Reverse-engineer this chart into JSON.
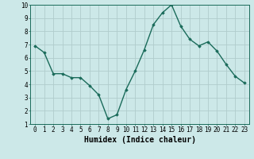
{
  "x": [
    0,
    1,
    2,
    3,
    4,
    5,
    6,
    7,
    8,
    9,
    10,
    11,
    12,
    13,
    14,
    15,
    16,
    17,
    18,
    19,
    20,
    21,
    22,
    23
  ],
  "y": [
    6.9,
    6.4,
    4.8,
    4.8,
    4.5,
    4.5,
    3.9,
    3.2,
    1.4,
    1.7,
    3.6,
    5.0,
    6.6,
    8.5,
    9.4,
    10.0,
    8.4,
    7.4,
    6.9,
    7.2,
    6.5,
    5.5,
    4.6,
    4.1
  ],
  "line_color": "#1a6b5a",
  "marker": "D",
  "markersize": 1.8,
  "linewidth": 1.0,
  "xlabel": "Humidex (Indice chaleur)",
  "xlabel_fontsize": 7,
  "xlabel_bold": true,
  "ylim": [
    1,
    10
  ],
  "xlim_min": -0.5,
  "xlim_max": 23.5,
  "yticks": [
    1,
    2,
    3,
    4,
    5,
    6,
    7,
    8,
    9,
    10
  ],
  "xticks": [
    0,
    1,
    2,
    3,
    4,
    5,
    6,
    7,
    8,
    9,
    10,
    11,
    12,
    13,
    14,
    15,
    16,
    17,
    18,
    19,
    20,
    21,
    22,
    23
  ],
  "bg_color": "#cce8e8",
  "grid_color": "#b0cccc",
  "tick_fontsize": 5.5,
  "spine_color": "#1a6b5a"
}
